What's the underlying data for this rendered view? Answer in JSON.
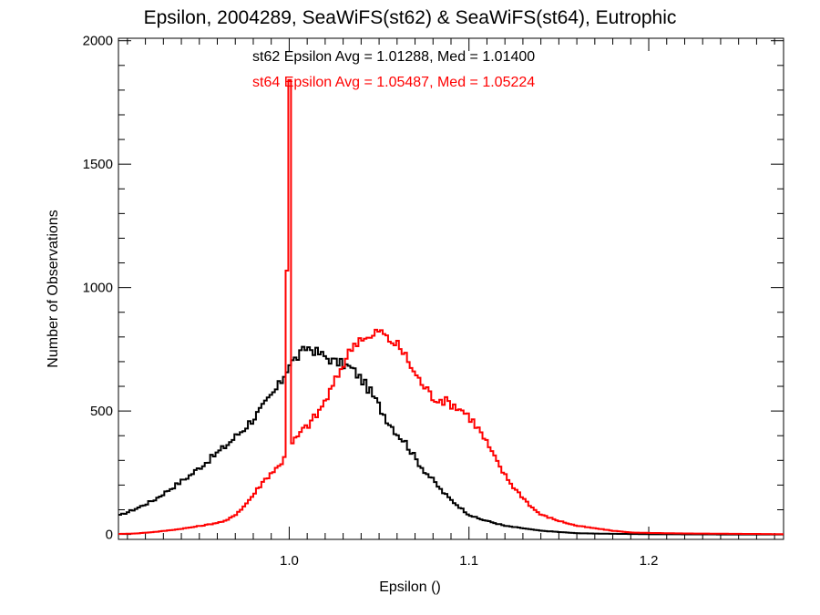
{
  "chart_data": {
    "type": "line",
    "title": "Epsilon, 2004289, SeaWiFS(st62) & SeaWiFS(st64), Eutrophic",
    "xlabel": "Epsilon ()",
    "ylabel": "Number of Observations",
    "xlim": [
      0.905,
      1.275
    ],
    "ylim": [
      -20,
      2010
    ],
    "x_ticks": [
      1.0,
      1.1,
      1.2
    ],
    "y_ticks": [
      0,
      500,
      1000,
      1500,
      2000
    ],
    "x_tick_labels": [
      "1.0",
      "1.1",
      "1.2"
    ],
    "y_tick_labels": [
      "0",
      "500",
      "1000",
      "1500",
      "2000"
    ],
    "grid": false,
    "legend": "none",
    "annotations": [
      {
        "text": "st62 Epsilon Avg = 1.01288, Med = 1.01400",
        "color": "#000000"
      },
      {
        "text": "st64 Epsilon Avg = 1.05487, Med = 1.05224",
        "color": "#ff0000"
      }
    ],
    "series": [
      {
        "color": "#000000",
        "style": "step",
        "points": [
          [
            0.905,
            75
          ],
          [
            0.915,
            105
          ],
          [
            0.925,
            140
          ],
          [
            0.935,
            190
          ],
          [
            0.945,
            240
          ],
          [
            0.955,
            300
          ],
          [
            0.965,
            360
          ],
          [
            0.975,
            430
          ],
          [
            0.985,
            510
          ],
          [
            0.99,
            560
          ],
          [
            0.995,
            610
          ],
          [
            1.0,
            690
          ],
          [
            1.005,
            720
          ],
          [
            1.01,
            760
          ],
          [
            1.015,
            740
          ],
          [
            1.02,
            720
          ],
          [
            1.025,
            700
          ],
          [
            1.03,
            690
          ],
          [
            1.035,
            670
          ],
          [
            1.04,
            630
          ],
          [
            1.045,
            580
          ],
          [
            1.05,
            520
          ],
          [
            1.055,
            460
          ],
          [
            1.06,
            410
          ],
          [
            1.065,
            370
          ],
          [
            1.07,
            310
          ],
          [
            1.075,
            260
          ],
          [
            1.08,
            220
          ],
          [
            1.085,
            175
          ],
          [
            1.09,
            140
          ],
          [
            1.095,
            110
          ],
          [
            1.1,
            80
          ],
          [
            1.105,
            65
          ],
          [
            1.11,
            55
          ],
          [
            1.12,
            35
          ],
          [
            1.13,
            25
          ],
          [
            1.14,
            15
          ],
          [
            1.15,
            10
          ],
          [
            1.16,
            5
          ],
          [
            1.175,
            3
          ],
          [
            1.2,
            1
          ],
          [
            1.24,
            0
          ],
          [
            1.275,
            0
          ]
        ]
      },
      {
        "color": "#ff0000",
        "style": "step",
        "points": [
          [
            0.905,
            2
          ],
          [
            0.915,
            4
          ],
          [
            0.925,
            10
          ],
          [
            0.935,
            18
          ],
          [
            0.945,
            28
          ],
          [
            0.955,
            40
          ],
          [
            0.965,
            55
          ],
          [
            0.97,
            80
          ],
          [
            0.975,
            115
          ],
          [
            0.98,
            160
          ],
          [
            0.985,
            210
          ],
          [
            0.99,
            250
          ],
          [
            0.995,
            280
          ],
          [
            0.998,
            330
          ],
          [
            0.9995,
            1830
          ],
          [
            1.0005,
            1830
          ],
          [
            1.001,
            360
          ],
          [
            1.005,
            400
          ],
          [
            1.01,
            440
          ],
          [
            1.015,
            480
          ],
          [
            1.02,
            540
          ],
          [
            1.025,
            610
          ],
          [
            1.03,
            690
          ],
          [
            1.035,
            760
          ],
          [
            1.04,
            800
          ],
          [
            1.045,
            790
          ],
          [
            1.05,
            830
          ],
          [
            1.055,
            790
          ],
          [
            1.06,
            770
          ],
          [
            1.065,
            720
          ],
          [
            1.07,
            650
          ],
          [
            1.075,
            600
          ],
          [
            1.08,
            555
          ],
          [
            1.085,
            545
          ],
          [
            1.09,
            530
          ],
          [
            1.095,
            510
          ],
          [
            1.1,
            480
          ],
          [
            1.105,
            430
          ],
          [
            1.11,
            370
          ],
          [
            1.115,
            300
          ],
          [
            1.12,
            240
          ],
          [
            1.125,
            190
          ],
          [
            1.13,
            150
          ],
          [
            1.135,
            110
          ],
          [
            1.14,
            80
          ],
          [
            1.15,
            55
          ],
          [
            1.16,
            35
          ],
          [
            1.17,
            25
          ],
          [
            1.18,
            15
          ],
          [
            1.19,
            8
          ],
          [
            1.2,
            6
          ],
          [
            1.22,
            4
          ],
          [
            1.24,
            3
          ],
          [
            1.26,
            2
          ],
          [
            1.275,
            1
          ]
        ]
      }
    ]
  }
}
